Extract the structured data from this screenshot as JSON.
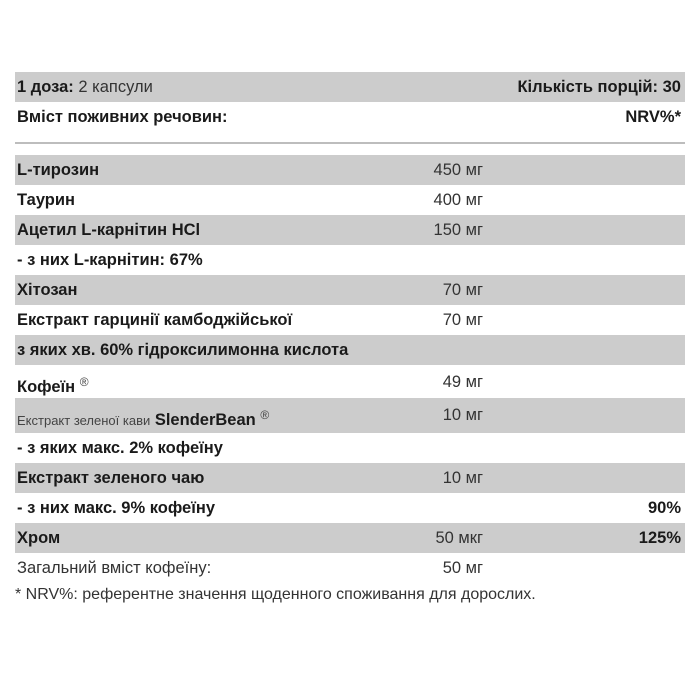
{
  "header": {
    "dose_label": "1 доза:",
    "dose_value": "2 капсули",
    "servings": "Кількість порцій: 30",
    "content_label": "Вміст поживних речовин:",
    "nrv_label": "NRV%*"
  },
  "rows": [
    {
      "name": "L-тирозин",
      "amount": "450 мг",
      "nrv": ""
    },
    {
      "name": "Таурин",
      "amount": "400 мг",
      "nrv": ""
    },
    {
      "name": "Ацетил L-карнітин HCl",
      "amount": "150 мг",
      "nrv": ""
    },
    {
      "name": "- з них L-карнітин: 67%",
      "amount": "",
      "nrv": ""
    },
    {
      "name": "Хітозан",
      "amount": "70 мг",
      "nrv": ""
    },
    {
      "name": "Екстракт гарцинії камбоджійської",
      "amount": "70 мг",
      "nrv": ""
    },
    {
      "name": "з яких хв. 60% гідроксилимонна кислота",
      "amount": "",
      "nrv": ""
    },
    {
      "name": "Кофеїн",
      "sup": "®",
      "amount": "49 мг",
      "nrv": ""
    },
    {
      "name_prefix": "Екстракт зеленої кави",
      "name": "SlenderBean",
      "sup": "®",
      "amount": "10 мг",
      "nrv": ""
    },
    {
      "name": "- з яких макс. 2% кофеїну",
      "amount": "",
      "nrv": ""
    },
    {
      "name": "Екстракт зеленого чаю",
      "amount": "10 мг",
      "nrv": ""
    },
    {
      "name": "- з них макс. 9% кофеїну",
      "amount": "",
      "nrv": "90%"
    },
    {
      "name": "Хром",
      "amount": "50 мкг",
      "nrv": "125%"
    },
    {
      "name": "Загальний вміст кофеїну:",
      "amount": "50 мг",
      "nrv": ""
    }
  ],
  "footnote": "* NRV%: референтне значення щоденного споживання для дорослих."
}
